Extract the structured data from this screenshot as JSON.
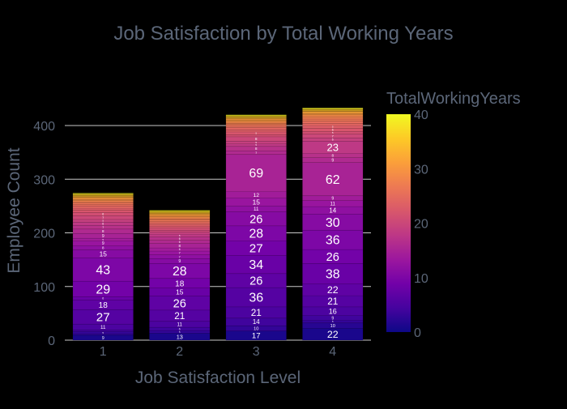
{
  "chart_data": {
    "type": "bar",
    "title": "Job Satisfaction by Total Working Years",
    "xlabel": "Job Satisfaction Level",
    "ylabel": "Employee Count",
    "categories": [
      "1",
      "2",
      "3",
      "4"
    ],
    "ylim": [
      0,
      440
    ],
    "yticks": [
      "0",
      "100",
      "200",
      "300",
      "400"
    ],
    "grid": true,
    "colorbar": {
      "title": "TotalWorkingYears",
      "range": [
        0,
        40
      ],
      "ticks": [
        "0",
        "10",
        "20",
        "30",
        "40"
      ],
      "colorscale": [
        "#0d0887",
        "#46039f",
        "#7201a8",
        "#9c179e",
        "#bd3786",
        "#d8576b",
        "#ed7953",
        "#fb9f3a",
        "#fdca26",
        "#f0f921"
      ]
    },
    "series_by_years": [
      {
        "years": 0,
        "values": [
          0,
          0,
          0,
          0
        ]
      },
      {
        "years": 1,
        "values": [
          9,
          13,
          17,
          22
        ]
      },
      {
        "years": 2,
        "values": [
          2,
          0,
          0,
          10
        ]
      },
      {
        "years": 3,
        "values": [
          5,
          5,
          10,
          5
        ]
      },
      {
        "years": 4,
        "values": [
          3,
          6,
          14,
          9
        ]
      },
      {
        "years": 5,
        "values": [
          11,
          11,
          21,
          16
        ]
      },
      {
        "years": 6,
        "values": [
          27,
          21,
          36,
          21
        ]
      },
      {
        "years": 7,
        "values": [
          18,
          26,
          26,
          22
        ]
      },
      {
        "years": 8,
        "values": [
          6,
          15,
          34,
          38
        ]
      },
      {
        "years": 9,
        "values": [
          29,
          18,
          27,
          26
        ]
      },
      {
        "years": 10,
        "values": [
          43,
          28,
          28,
          36
        ]
      },
      {
        "years": 11,
        "values": [
          15,
          9,
          26,
          30
        ]
      },
      {
        "years": 12,
        "values": [
          8,
          7,
          11,
          14
        ]
      },
      {
        "years": 13,
        "values": [
          9,
          7,
          15,
          11
        ]
      },
      {
        "years": 14,
        "values": [
          5,
          6,
          12,
          9
        ]
      },
      {
        "years": 15,
        "values": [
          9,
          8,
          69,
          62
        ]
      },
      {
        "years": 16,
        "values": [
          8,
          6,
          7,
          9
        ]
      },
      {
        "years": 17,
        "values": [
          7,
          6,
          8,
          8
        ]
      },
      {
        "years": 18,
        "values": [
          6,
          5,
          5,
          23
        ]
      },
      {
        "years": 19,
        "values": [
          5,
          4,
          5,
          6
        ]
      },
      {
        "years": 20,
        "values": [
          7,
          4,
          8,
          7
        ]
      },
      {
        "years": 21,
        "values": [
          6,
          4,
          4,
          5
        ]
      },
      {
        "years": 22,
        "values": [
          4,
          3,
          5,
          6
        ]
      },
      {
        "years": 23,
        "values": [
          4,
          3,
          4,
          5
        ]
      },
      {
        "years": 24,
        "values": [
          4,
          3,
          4,
          4
        ]
      },
      {
        "years": 25,
        "values": [
          3,
          3,
          3,
          4
        ]
      },
      {
        "years": 26,
        "values": [
          3,
          3,
          3,
          4
        ]
      },
      {
        "years": 27,
        "values": [
          2,
          2,
          2,
          3
        ]
      },
      {
        "years": 28,
        "values": [
          2,
          2,
          2,
          3
        ]
      },
      {
        "years": 29,
        "values": [
          2,
          2,
          2,
          2
        ]
      },
      {
        "years": 30,
        "values": [
          2,
          2,
          2,
          2
        ]
      },
      {
        "years": 31,
        "values": [
          2,
          2,
          2,
          2
        ]
      },
      {
        "years": 32,
        "values": [
          1,
          1,
          1,
          2
        ]
      },
      {
        "years": 33,
        "values": [
          1,
          1,
          1,
          1
        ]
      },
      {
        "years": 34,
        "values": [
          1,
          1,
          1,
          1
        ]
      },
      {
        "years": 35,
        "values": [
          1,
          1,
          1,
          1
        ]
      },
      {
        "years": 36,
        "values": [
          1,
          1,
          1,
          1
        ]
      },
      {
        "years": 37,
        "values": [
          1,
          1,
          1,
          1
        ]
      },
      {
        "years": 38,
        "values": [
          1,
          1,
          1,
          1
        ]
      },
      {
        "years": 40,
        "values": [
          1,
          1,
          1,
          1
        ]
      }
    ]
  }
}
